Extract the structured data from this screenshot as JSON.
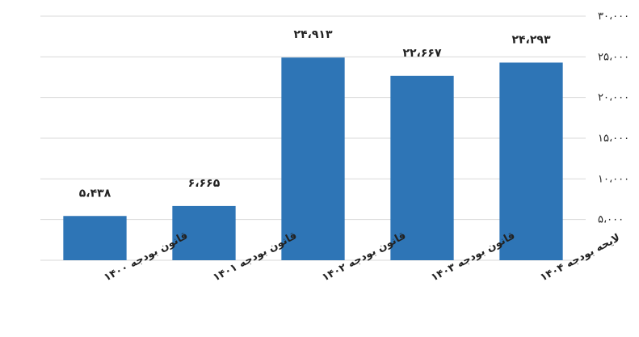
{
  "chart_data": {
    "type": "bar",
    "categories": [
      "قانون بودجه ۱۴۰۰",
      "قانون بودجه ۱۴۰۱",
      "قانون بودجه ۱۴۰۲",
      "قانون بودجه ۱۴۰۳",
      "لایحه بودجه ۱۴۰۴"
    ],
    "values": [
      5438,
      6665,
      24913,
      22667,
      24293
    ],
    "data_labels": [
      "۵،۴۳۸",
      "۶،۶۶۵",
      "۲۴،۹۱۳",
      "۲۲،۶۶۷",
      "۲۴،۲۹۳"
    ],
    "yticks": [
      5000,
      10000,
      15000,
      20000,
      25000,
      30000
    ],
    "ytick_labels": [
      "۵،۰۰۰",
      "۱۰،۰۰۰",
      "۱۵،۰۰۰",
      "۲۰،۰۰۰",
      "۲۵،۰۰۰",
      "۳۰،۰۰۰"
    ],
    "ylim": [
      0,
      30000
    ],
    "yaxis_side": "right",
    "grid": true,
    "bar_color": "#2e75b6",
    "title": "",
    "xlabel": "",
    "ylabel": ""
  }
}
